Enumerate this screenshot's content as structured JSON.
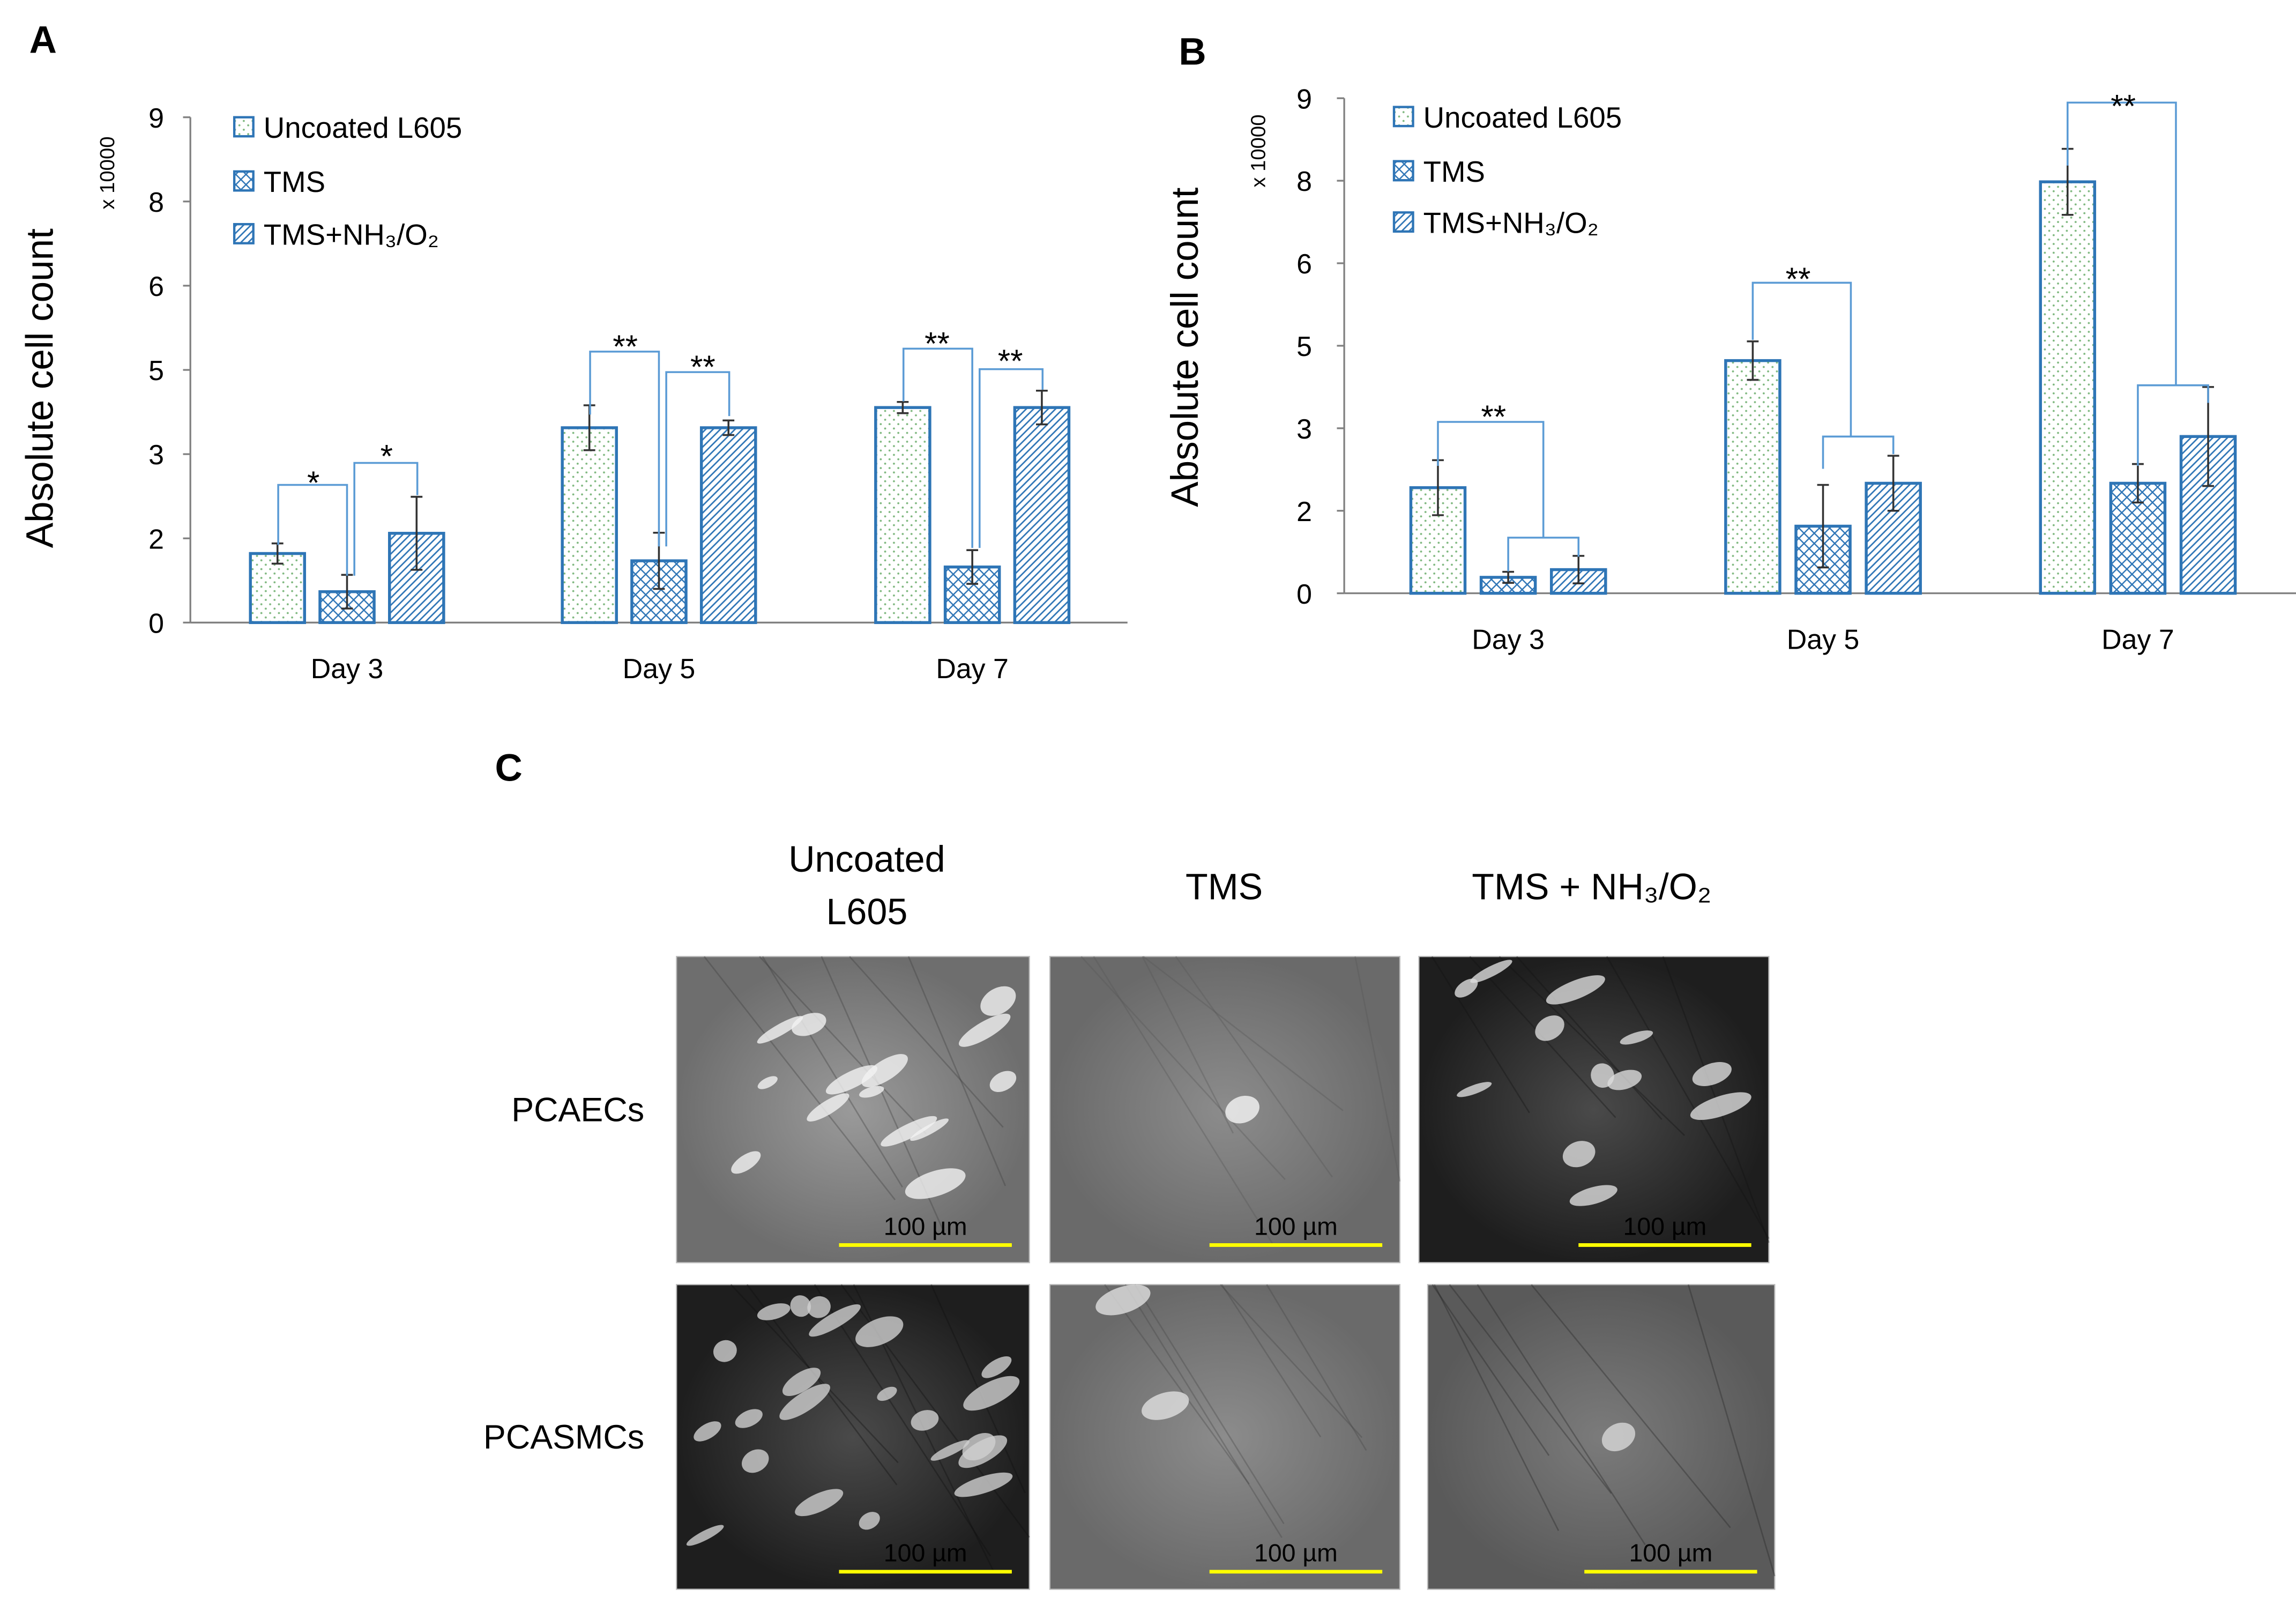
{
  "panel_labels": [
    "A",
    "B",
    "C"
  ],
  "chart_data": [
    {
      "type": "bar",
      "y_label": "Absolute cell count",
      "y_multiplier": "x 10000",
      "categories": [
        "Day 3",
        "Day 5",
        "Day 7"
      ],
      "series": [
        {
          "name": "Uncoated L605",
          "color": "#2e75b6",
          "pattern": "dots",
          "values": [
            1.23,
            3.47,
            3.83
          ],
          "errors": [
            0.18,
            0.4,
            0.1
          ]
        },
        {
          "name": "TMS",
          "color": "#2e75b6",
          "pattern": "cross",
          "values": [
            0.55,
            1.1,
            0.99
          ],
          "errors": [
            0.3,
            0.5,
            0.3
          ]
        },
        {
          "name": "TMS+NH₃/O₂",
          "color": "#2e75b6",
          "pattern": "diag",
          "values": [
            1.59,
            3.47,
            3.83
          ],
          "errors": [
            0.65,
            0.13,
            0.3
          ]
        }
      ],
      "ylim": [
        0,
        9
      ],
      "yticks": [
        0,
        {
          "value": 1.5,
          "label": "2"
        },
        3,
        {
          "value": 4.5,
          "label": "5"
        },
        6,
        {
          "value": 7.5,
          "label": "8"
        },
        9
      ],
      "annotations": [
        "*",
        "*",
        "**",
        "**",
        "**",
        "**"
      ],
      "legend": "upper left"
    },
    {
      "type": "bar",
      "y_label": "Absolute cell count",
      "y_multiplier": "x 10000",
      "categories": [
        "Day 3",
        "Day 5",
        "Day 7"
      ],
      "series": [
        {
          "name": "Uncoated L605",
          "color": "#2e75b6",
          "pattern": "dots",
          "values": [
            1.92,
            4.23,
            7.48
          ],
          "errors": [
            0.5,
            0.35,
            0.6
          ]
        },
        {
          "name": "TMS",
          "color": "#2e75b6",
          "pattern": "cross",
          "values": [
            0.29,
            1.22,
            2.0
          ],
          "errors": [
            0.1,
            0.75,
            0.35
          ]
        },
        {
          "name": "TMS+NH₃/O₂",
          "color": "#2e75b6",
          "pattern": "diag",
          "values": [
            0.43,
            2.0,
            2.85
          ],
          "errors": [
            0.25,
            0.5,
            0.9
          ]
        }
      ],
      "ylim": [
        0,
        9
      ],
      "yticks": [
        0,
        {
          "value": 1.5,
          "label": "2"
        },
        3,
        {
          "value": 4.5,
          "label": "5"
        },
        6,
        {
          "value": 7.5,
          "label": "8"
        },
        9
      ],
      "annotations": [
        "**",
        "**",
        "**"
      ],
      "legend": "upper left"
    }
  ],
  "micrographs": {
    "column_headers": [
      [
        "Uncoated",
        "L605"
      ],
      [
        "TMS"
      ],
      [
        "TMS + NH₃/O₂"
      ]
    ],
    "row_labels": [
      "PCAECs",
      "PCASMCs"
    ],
    "scale_bar_label": "100 µm"
  }
}
